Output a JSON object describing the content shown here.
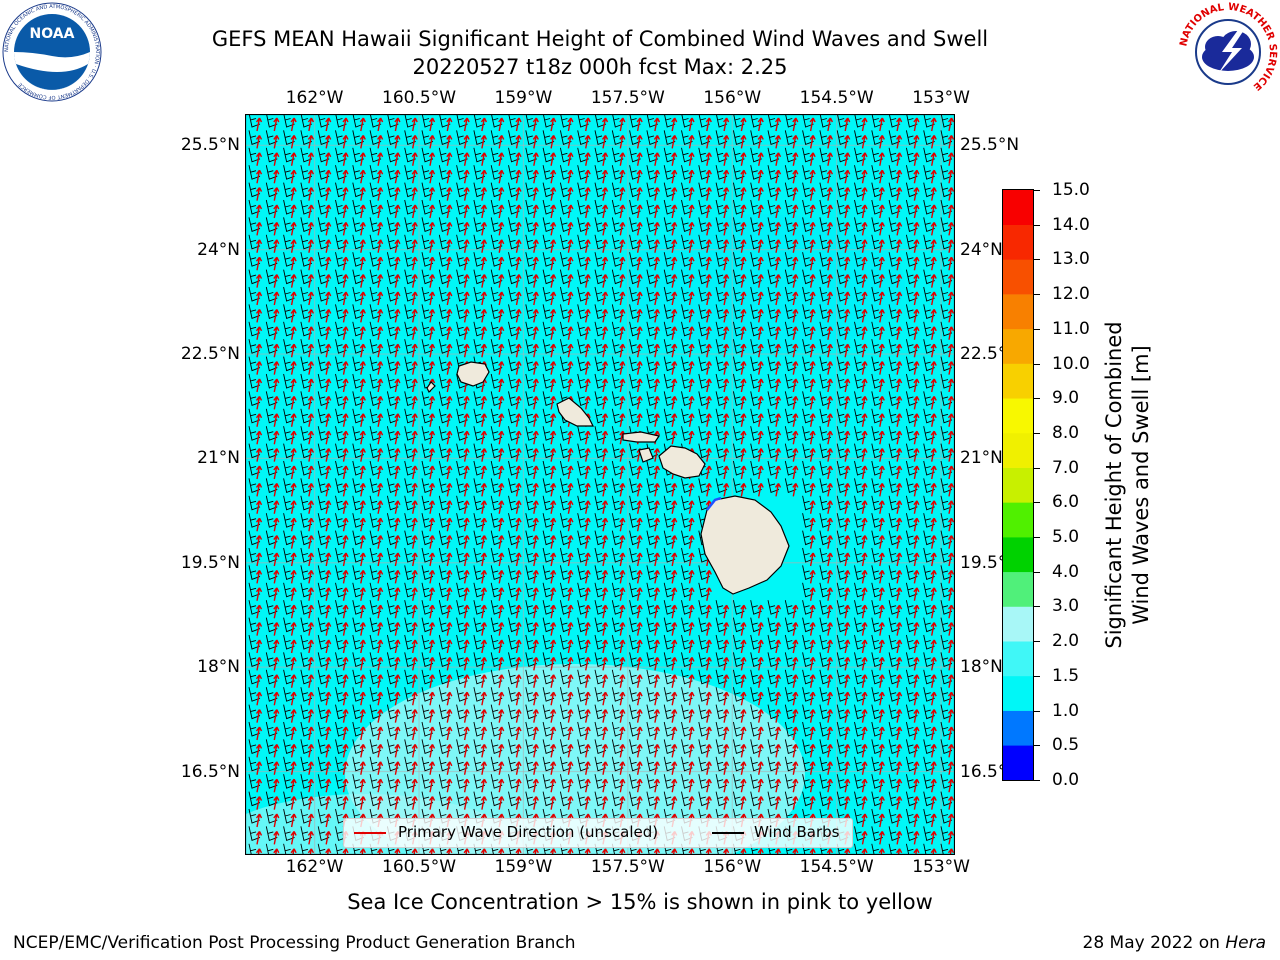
{
  "title": {
    "line1": "GEFS MEAN Hawaii Significant Height of Combined Wind Waves and Swell",
    "line2": "20220527 t18z 000h fcst   Max: 2.25"
  },
  "map": {
    "lon_labels": [
      "162°W",
      "160.5°W",
      "159°W",
      "157.5°W",
      "156°W",
      "154.5°W",
      "153°W"
    ],
    "lon_values": [
      -162,
      -160.5,
      -159,
      -157.5,
      -156,
      -154.5,
      -153
    ],
    "lat_labels": [
      "25.5°N",
      "24°N",
      "22.5°N",
      "21°N",
      "19.5°N",
      "18°N",
      "16.5°N"
    ],
    "lat_values": [
      25.5,
      24,
      22.5,
      21,
      19.5,
      18,
      16.5
    ],
    "lon_range": [
      -163,
      -152.8
    ],
    "lat_range": [
      15.3,
      25.95
    ],
    "ocean_color": "#00f7f7",
    "land_color": "#efeadc",
    "barb_color": "#000000",
    "wave_dir_color": "#e00000"
  },
  "legend": {
    "wave_dir_label": "Primary Wave Direction (unscaled)",
    "wind_barbs_label": "Wind Barbs"
  },
  "colorbar": {
    "label_line1": "Significant Height of Combined",
    "label_line2": "Wind Waves and Swell [m]",
    "ticks": [
      "0.0",
      "0.5",
      "1.0",
      "1.5",
      "2.0",
      "3.0",
      "4.0",
      "5.0",
      "6.0",
      "7.0",
      "8.0",
      "9.0",
      "10.0",
      "11.0",
      "12.0",
      "13.0",
      "14.0",
      "15.0"
    ],
    "colors": [
      "#0000ff",
      "#0078ff",
      "#00f7f7",
      "#40f7f7",
      "#a8f7f7",
      "#50f07a",
      "#00d200",
      "#50f000",
      "#c8f000",
      "#f0f000",
      "#f8f800",
      "#f8d000",
      "#f8a800",
      "#f88000",
      "#f85000",
      "#f82800",
      "#f80000"
    ]
  },
  "footer": {
    "left": "NCEP/EMC/Verification Post Processing Product Generation Branch",
    "right_prefix": "28 May 2022 on ",
    "right_host": "Hera"
  },
  "subtitle": "Sea Ice Concentration > 15% is shown in pink to yellow",
  "logos": {
    "noaa": "NOAA",
    "noaa_ring": "NATIONAL OCEANIC AND ATMOSPHERIC ADMINISTRATION · U.S. DEPARTMENT OF COMMERCE",
    "nws_ring": "NATIONAL WEATHER SERVICE"
  }
}
